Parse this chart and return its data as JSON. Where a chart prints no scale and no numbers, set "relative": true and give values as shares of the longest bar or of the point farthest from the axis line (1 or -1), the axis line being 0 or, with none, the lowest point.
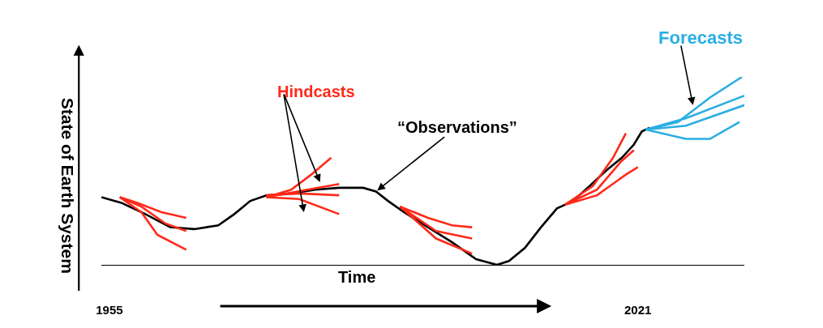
{
  "chart_data": {
    "type": "line",
    "relative": true,
    "xlabel": "Time",
    "ylabel": "State of Earth System",
    "xlim": [
      1954,
      2034.3
    ],
    "xticks": [
      1955,
      2021
    ],
    "legend": false,
    "marker": "none",
    "line_style": "solid",
    "series": [
      {
        "color": "#000000",
        "x": [
          1954,
          1956.5,
          1959.5,
          1962.6,
          1965.6,
          1968.6,
          1970.6,
          1972.6,
          1974.6,
          1977.7,
          1980.7,
          1983.7,
          1986.7,
          1988.3,
          1989.8,
          1991.8,
          1994.8,
          1997.8,
          2000.8,
          2003.4,
          2004.9,
          2006.9,
          2008.9,
          2010.9,
          2012.9,
          2015,
          2017,
          2019,
          2020.5,
          2021.5,
          2022.5
        ],
        "values": [
          0.36,
          0.33,
          0.27,
          0.2,
          0.19,
          0.21,
          0.27,
          0.34,
          0.37,
          0.38,
          0.4,
          0.41,
          0.41,
          0.39,
          0.34,
          0.28,
          0.2,
          0.12,
          0.03,
          0,
          0.02,
          0.09,
          0.2,
          0.3,
          0.34,
          0.42,
          0.5,
          0.57,
          0.64,
          0.71,
          0.73
        ]
      },
      {
        "color": "#ff2a1a",
        "x": [
          1956.3,
          1958.5,
          1961.5,
          1964.6
        ],
        "values": [
          0.36,
          0.33,
          0.28,
          0.25
        ]
      },
      {
        "color": "#ff2a1a",
        "x": [
          1956.3,
          1959,
          1962,
          1964.6
        ],
        "values": [
          0.36,
          0.31,
          0.22,
          0.18
        ]
      },
      {
        "color": "#ff2a1a",
        "x": [
          1956.3,
          1959,
          1961,
          1964.6
        ],
        "values": [
          0.36,
          0.28,
          0.16,
          0.08
        ]
      },
      {
        "color": "#ff2a1a",
        "x": [
          1974.6,
          1977.7,
          1980.2,
          1982.7
        ],
        "values": [
          0.36,
          0.4,
          0.48,
          0.57
        ]
      },
      {
        "color": "#ff2a1a",
        "x": [
          1974.6,
          1978.7,
          1983.7
        ],
        "values": [
          0.37,
          0.38,
          0.37
        ]
      },
      {
        "color": "#ff2a1a",
        "x": [
          1974.6,
          1978.7,
          1983.7
        ],
        "values": [
          0.36,
          0.35,
          0.27
        ]
      },
      {
        "color": "#ff2a1a",
        "x": [
          1974.6,
          1979.7,
          1983.7
        ],
        "values": [
          0.36,
          0.4,
          0.43
        ]
      },
      {
        "color": "#ff2a1a",
        "x": [
          1991.3,
          1994.8,
          1997.8,
          2000.3
        ],
        "values": [
          0.31,
          0.25,
          0.21,
          0.2
        ]
      },
      {
        "color": "#ff2a1a",
        "x": [
          1991.3,
          1995.8,
          2000.3
        ],
        "values": [
          0.31,
          0.18,
          0.14
        ]
      },
      {
        "color": "#ff2a1a",
        "x": [
          1991.3,
          1995.8,
          2000.3
        ],
        "values": [
          0.31,
          0.14,
          0.06
        ]
      },
      {
        "color": "#ff2a1a",
        "x": [
          2011.9,
          2015.9,
          2019.5,
          2021
        ],
        "values": [
          0.32,
          0.37,
          0.48,
          0.52
        ]
      },
      {
        "color": "#ff2a1a",
        "x": [
          2011.9,
          2015.9,
          2018.9,
          2020.5
        ],
        "values": [
          0.32,
          0.4,
          0.55,
          0.61
        ]
      },
      {
        "color": "#ff2a1a",
        "x": [
          2011.9,
          2015.4,
          2017.9,
          2019.5
        ],
        "values": [
          0.32,
          0.42,
          0.57,
          0.7
        ]
      },
      {
        "color": "#29aee3",
        "x": [
          2022,
          2026,
          2030,
          2034
        ],
        "values": [
          0.72,
          0.76,
          0.89,
          1.0
        ]
      },
      {
        "color": "#29aee3",
        "x": [
          2022,
          2027,
          2034.3
        ],
        "values": [
          0.72,
          0.78,
          0.9
        ]
      },
      {
        "color": "#29aee3",
        "x": [
          2022,
          2027,
          2034.3
        ],
        "values": [
          0.72,
          0.74,
          0.85
        ]
      },
      {
        "color": "#29aee3",
        "x": [
          2022,
          2027,
          2030,
          2033.7
        ],
        "values": [
          0.72,
          0.67,
          0.67,
          0.76
        ]
      }
    ],
    "annotations": [
      "Forecasts",
      "Hindcasts",
      {
        "text": "“Observations”",
        "x": 1988.3,
        "y": 0.39
      }
    ]
  }
}
